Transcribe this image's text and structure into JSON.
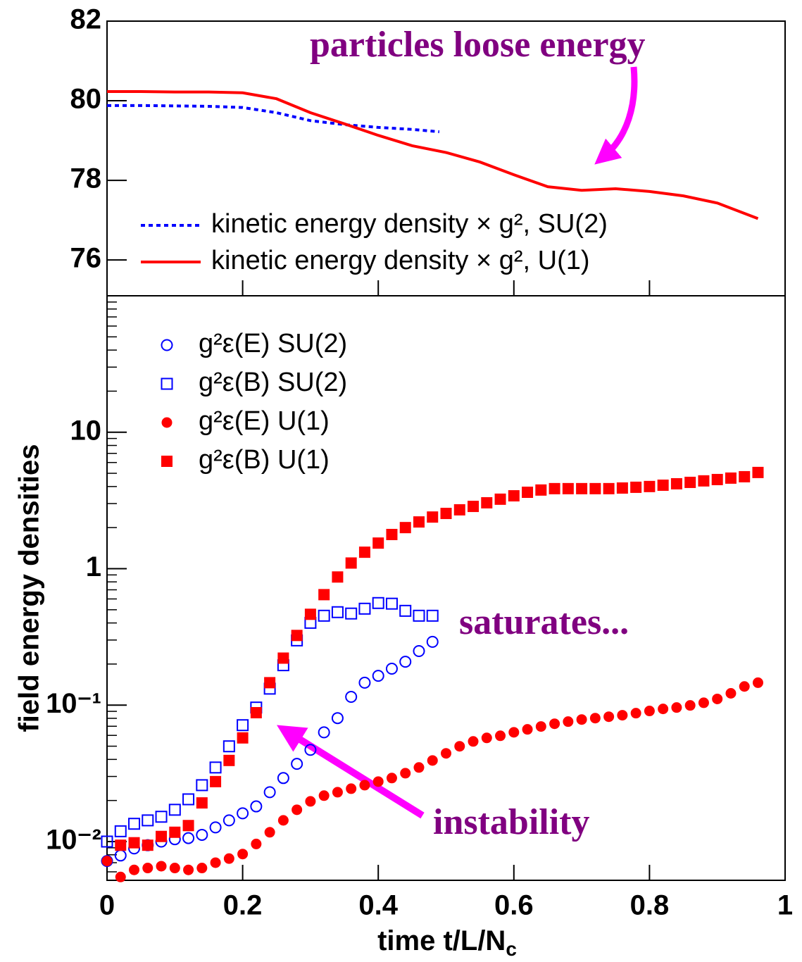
{
  "chart_data": [
    {
      "type": "line",
      "xlim": [
        0,
        1
      ],
      "xticks": [
        0,
        0.2,
        0.4,
        0.6,
        0.8,
        1
      ],
      "ylim": [
        75.1,
        82
      ],
      "yticks": [
        76,
        78,
        80,
        82
      ],
      "annotations": [
        "particles loose energy"
      ],
      "series": [
        {
          "name": "kinetic energy density × g², SU(2)",
          "color": "#0000ff",
          "style": "dotted",
          "x": [
            0,
            0.05,
            0.1,
            0.15,
            0.2,
            0.25,
            0.3,
            0.35,
            0.4,
            0.45,
            0.49
          ],
          "values": [
            79.88,
            79.88,
            79.87,
            79.86,
            79.83,
            79.7,
            79.5,
            79.4,
            79.33,
            79.28,
            79.22
          ]
        },
        {
          "name": "kinetic energy density × g², U(1)",
          "color": "#ff0000",
          "style": "solid",
          "x": [
            0,
            0.05,
            0.1,
            0.15,
            0.2,
            0.25,
            0.3,
            0.35,
            0.4,
            0.45,
            0.5,
            0.55,
            0.6,
            0.65,
            0.7,
            0.75,
            0.8,
            0.85,
            0.9,
            0.96
          ],
          "values": [
            80.23,
            80.23,
            80.22,
            80.22,
            80.2,
            80.05,
            79.7,
            79.42,
            79.13,
            78.87,
            78.7,
            78.46,
            78.14,
            77.84,
            77.75,
            77.79,
            77.72,
            77.61,
            77.43,
            77.04
          ]
        }
      ]
    },
    {
      "type": "scatter",
      "log_y": true,
      "x_label": {
        "text": "time t/L/N",
        "subscript": "c"
      },
      "y_label": "field energy densities",
      "xlim": [
        0,
        1
      ],
      "xticks": [
        0,
        0.2,
        0.4,
        0.6,
        0.8,
        1
      ],
      "ylim": [
        0.0052,
        100
      ],
      "yticks": [
        {
          "value": 0.01,
          "label": "10⁻²"
        },
        {
          "value": 0.1,
          "label": "10⁻¹"
        },
        1,
        10
      ],
      "annotations": [
        "saturates...",
        "instability"
      ],
      "series": [
        {
          "name": "g²ε(E) SU(2)",
          "color": "#0000ff",
          "marker": "circle-open",
          "x": [
            0,
            0.02,
            0.04,
            0.06,
            0.08,
            0.1,
            0.12,
            0.14,
            0.16,
            0.18,
            0.2,
            0.22,
            0.24,
            0.26,
            0.28,
            0.3,
            0.32,
            0.34,
            0.36,
            0.38,
            0.4,
            0.42,
            0.44,
            0.46,
            0.48
          ],
          "values": [
            0.0072,
            0.0079,
            0.0089,
            0.0094,
            0.01,
            0.0104,
            0.0106,
            0.0112,
            0.0127,
            0.0143,
            0.0161,
            0.0181,
            0.023,
            0.0292,
            0.0371,
            0.047,
            0.0632,
            0.0803,
            0.115,
            0.146,
            0.164,
            0.185,
            0.208,
            0.249,
            0.291
          ]
        },
        {
          "name": "g²ε(B) SU(2)",
          "color": "#0000ff",
          "marker": "square-open",
          "x": [
            0,
            0.02,
            0.04,
            0.06,
            0.08,
            0.1,
            0.12,
            0.14,
            0.16,
            0.18,
            0.2,
            0.22,
            0.24,
            0.26,
            0.28,
            0.3,
            0.32,
            0.34,
            0.36,
            0.38,
            0.4,
            0.42,
            0.44,
            0.46,
            0.48
          ],
          "values": [
            0.01,
            0.0119,
            0.0135,
            0.0143,
            0.0152,
            0.0171,
            0.0204,
            0.0259,
            0.0349,
            0.0499,
            0.0713,
            0.096,
            0.132,
            0.196,
            0.298,
            0.401,
            0.452,
            0.48,
            0.469,
            0.509,
            0.56,
            0.554,
            0.491,
            0.452,
            0.452
          ]
        },
        {
          "name": "g²ε(E) U(1)",
          "color": "#ff0000",
          "marker": "circle",
          "x": [
            0,
            0.02,
            0.04,
            0.06,
            0.08,
            0.1,
            0.12,
            0.14,
            0.16,
            0.18,
            0.2,
            0.22,
            0.24,
            0.26,
            0.28,
            0.3,
            0.32,
            0.34,
            0.36,
            0.38,
            0.4,
            0.42,
            0.44,
            0.46,
            0.48,
            0.5,
            0.52,
            0.54,
            0.56,
            0.58,
            0.6,
            0.62,
            0.64,
            0.66,
            0.68,
            0.7,
            0.72,
            0.74,
            0.76,
            0.78,
            0.8,
            0.82,
            0.84,
            0.86,
            0.88,
            0.9,
            0.92,
            0.94,
            0.96
          ],
          "values": [
            0.0072,
            0.0055,
            0.0062,
            0.0064,
            0.0066,
            0.0064,
            0.0062,
            0.0064,
            0.007,
            0.0075,
            0.0081,
            0.0096,
            0.0117,
            0.0143,
            0.0171,
            0.0197,
            0.0217,
            0.023,
            0.0244,
            0.0259,
            0.0275,
            0.0292,
            0.0317,
            0.0349,
            0.0393,
            0.0443,
            0.0499,
            0.0542,
            0.0575,
            0.0596,
            0.0632,
            0.0664,
            0.0697,
            0.073,
            0.0757,
            0.0784,
            0.0803,
            0.0822,
            0.0843,
            0.0873,
            0.0906,
            0.0938,
            0.096,
            0.0995,
            0.104,
            0.111,
            0.122,
            0.137,
            0.146
          ]
        },
        {
          "name": "g²ε(B) U(1)",
          "color": "#ff0000",
          "marker": "square",
          "x": [
            0.02,
            0.04,
            0.06,
            0.08,
            0.1,
            0.12,
            0.14,
            0.16,
            0.18,
            0.2,
            0.22,
            0.24,
            0.26,
            0.28,
            0.3,
            0.32,
            0.34,
            0.36,
            0.38,
            0.4,
            0.42,
            0.44,
            0.46,
            0.48,
            0.5,
            0.52,
            0.54,
            0.56,
            0.58,
            0.6,
            0.62,
            0.64,
            0.66,
            0.68,
            0.7,
            0.72,
            0.74,
            0.76,
            0.78,
            0.8,
            0.82,
            0.84,
            0.86,
            0.88,
            0.9,
            0.92,
            0.94,
            0.96
          ],
          "values": [
            0.0094,
            0.0098,
            0.0094,
            0.0109,
            0.0117,
            0.0131,
            0.0192,
            0.0275,
            0.0393,
            0.0575,
            0.088,
            0.146,
            0.221,
            0.324,
            0.463,
            0.645,
            0.869,
            1.1,
            1.32,
            1.54,
            1.78,
            2.0,
            2.2,
            2.39,
            2.54,
            2.7,
            2.86,
            3.04,
            3.23,
            3.42,
            3.63,
            3.77,
            3.86,
            3.86,
            3.86,
            3.86,
            3.86,
            3.9,
            3.95,
            4.0,
            4.09,
            4.19,
            4.29,
            4.4,
            4.5,
            4.61,
            4.72,
            5.07
          ]
        }
      ]
    }
  ]
}
